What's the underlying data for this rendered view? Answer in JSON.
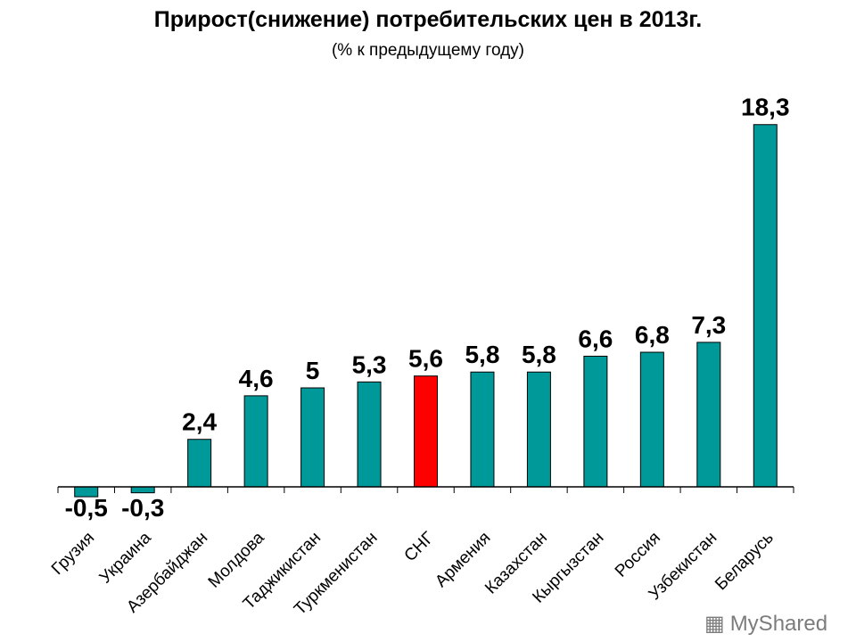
{
  "chart_data": {
    "type": "bar",
    "title": "Прирост(снижение) потребительских цен в 2013г.",
    "subtitle": "(% к предыдущему году)",
    "categories": [
      "Грузия",
      "Украина",
      "Азербайджан",
      "Молдова",
      "Таджикистан",
      "Туркменистан",
      "СНГ",
      "Армения",
      "Казахстан",
      "Кыргызстан",
      "Россия",
      "Узбекистан",
      "Беларусь"
    ],
    "values": [
      -0.5,
      -0.3,
      2.4,
      4.6,
      5,
      5.3,
      5.6,
      5.8,
      5.8,
      6.6,
      6.8,
      7.3,
      18.3
    ],
    "data_labels": [
      "-0,5",
      "-0,3",
      "2,4",
      "4,6",
      "5",
      "5,3",
      "5,6",
      "5,8",
      "5,8",
      "6,6",
      "6,8",
      "7,3",
      "18,3"
    ],
    "highlight_category": "СНГ",
    "colors": {
      "bar": "#009999",
      "highlight": "#ff0000"
    },
    "ylim": [
      -0.5,
      18.3
    ],
    "grid": false,
    "legend": "none"
  },
  "watermark": "MyShared"
}
